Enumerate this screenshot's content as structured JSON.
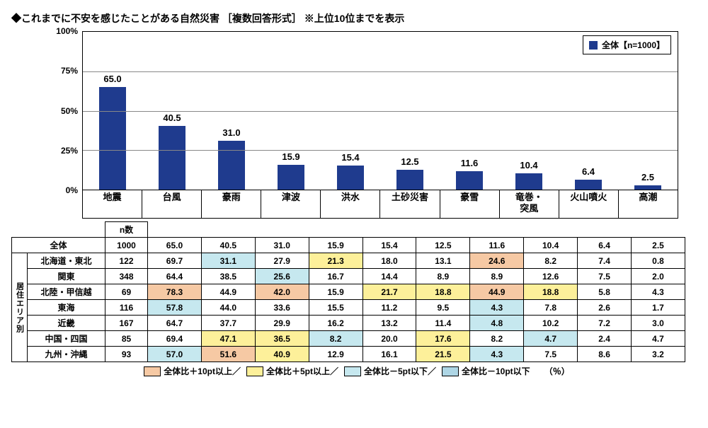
{
  "title": "◆これまでに不安を感じたことがある自然災害 ［複数回答形式］ ※上位10位までを表示",
  "chart": {
    "type": "bar",
    "ymax": 100,
    "ytick_step": 25,
    "ytick_suffix": "%",
    "bar_color": "#1f3b8e",
    "grid_color": "#888888",
    "categories": [
      "地震",
      "台風",
      "豪雨",
      "津波",
      "洪水",
      "土砂災害",
      "豪雪",
      "竜巻・\n突風",
      "火山噴火",
      "高潮"
    ],
    "values": [
      65.0,
      40.5,
      31.0,
      15.9,
      15.4,
      12.5,
      11.6,
      10.4,
      6.4,
      2.5
    ],
    "legend_label": "全体【n=1000】"
  },
  "table": {
    "n_header": "n数",
    "side_label": "居住エリア別",
    "highlight_colors": {
      "p10": "#f6c9a4",
      "p5": "#fdf09a",
      "m5": "#c6e8ef",
      "m10": "#aed6e5"
    },
    "rows": [
      {
        "label": "全体",
        "n": 1000,
        "cells": [
          {
            "v": 65.0
          },
          {
            "v": 40.5
          },
          {
            "v": 31.0
          },
          {
            "v": 15.9
          },
          {
            "v": 15.4
          },
          {
            "v": 12.5
          },
          {
            "v": 11.6
          },
          {
            "v": 10.4
          },
          {
            "v": 6.4
          },
          {
            "v": 2.5
          }
        ]
      },
      {
        "label": "北海道・東北",
        "n": 122,
        "cells": [
          {
            "v": 69.7
          },
          {
            "v": 31.1,
            "h": "m5"
          },
          {
            "v": 27.9
          },
          {
            "v": 21.3,
            "h": "p5"
          },
          {
            "v": 18.0
          },
          {
            "v": 13.1
          },
          {
            "v": 24.6,
            "h": "p10"
          },
          {
            "v": 8.2
          },
          {
            "v": 7.4
          },
          {
            "v": 0.8
          }
        ]
      },
      {
        "label": "関東",
        "n": 348,
        "cells": [
          {
            "v": 64.4
          },
          {
            "v": 38.5
          },
          {
            "v": 25.6,
            "h": "m5"
          },
          {
            "v": 16.7
          },
          {
            "v": 14.4
          },
          {
            "v": 8.9
          },
          {
            "v": 8.9
          },
          {
            "v": 12.6
          },
          {
            "v": 7.5
          },
          {
            "v": 2.0
          }
        ]
      },
      {
        "label": "北陸・甲信越",
        "n": 69,
        "cells": [
          {
            "v": 78.3,
            "h": "p10"
          },
          {
            "v": 44.9
          },
          {
            "v": 42.0,
            "h": "p10"
          },
          {
            "v": 15.9
          },
          {
            "v": 21.7,
            "h": "p5"
          },
          {
            "v": 18.8,
            "h": "p5"
          },
          {
            "v": 44.9,
            "h": "p10"
          },
          {
            "v": 18.8,
            "h": "p5"
          },
          {
            "v": 5.8
          },
          {
            "v": 4.3
          }
        ]
      },
      {
        "label": "東海",
        "n": 116,
        "cells": [
          {
            "v": 57.8,
            "h": "m5"
          },
          {
            "v": 44.0
          },
          {
            "v": 33.6
          },
          {
            "v": 15.5
          },
          {
            "v": 11.2
          },
          {
            "v": 9.5
          },
          {
            "v": 4.3,
            "h": "m5"
          },
          {
            "v": 7.8
          },
          {
            "v": 2.6
          },
          {
            "v": 1.7
          }
        ]
      },
      {
        "label": "近畿",
        "n": 167,
        "cells": [
          {
            "v": 64.7
          },
          {
            "v": 37.7
          },
          {
            "v": 29.9
          },
          {
            "v": 16.2
          },
          {
            "v": 13.2
          },
          {
            "v": 11.4
          },
          {
            "v": 4.8,
            "h": "m5"
          },
          {
            "v": 10.2
          },
          {
            "v": 7.2
          },
          {
            "v": 3.0
          }
        ]
      },
      {
        "label": "中国・四国",
        "n": 85,
        "cells": [
          {
            "v": 69.4
          },
          {
            "v": 47.1,
            "h": "p5"
          },
          {
            "v": 36.5,
            "h": "p5"
          },
          {
            "v": 8.2,
            "h": "m5"
          },
          {
            "v": 20.0
          },
          {
            "v": 17.6,
            "h": "p5"
          },
          {
            "v": 8.2
          },
          {
            "v": 4.7,
            "h": "m5"
          },
          {
            "v": 2.4
          },
          {
            "v": 4.7
          }
        ]
      },
      {
        "label": "九州・沖縄",
        "n": 93,
        "cells": [
          {
            "v": 57.0,
            "h": "m5"
          },
          {
            "v": 51.6,
            "h": "p10"
          },
          {
            "v": 40.9,
            "h": "p5"
          },
          {
            "v": 12.9
          },
          {
            "v": 16.1
          },
          {
            "v": 21.5,
            "h": "p5"
          },
          {
            "v": 4.3,
            "h": "m5"
          },
          {
            "v": 7.5
          },
          {
            "v": 8.6
          },
          {
            "v": 3.2
          }
        ]
      }
    ]
  },
  "color_legend": {
    "items": [
      {
        "key": "p10",
        "label": "全体比＋10pt以上／"
      },
      {
        "key": "p5",
        "label": "全体比＋5pt以上／"
      },
      {
        "key": "m5",
        "label": "全体比－5pt以下／"
      },
      {
        "key": "m10",
        "label": "全体比－10pt以下"
      }
    ],
    "unit": "（％）"
  }
}
